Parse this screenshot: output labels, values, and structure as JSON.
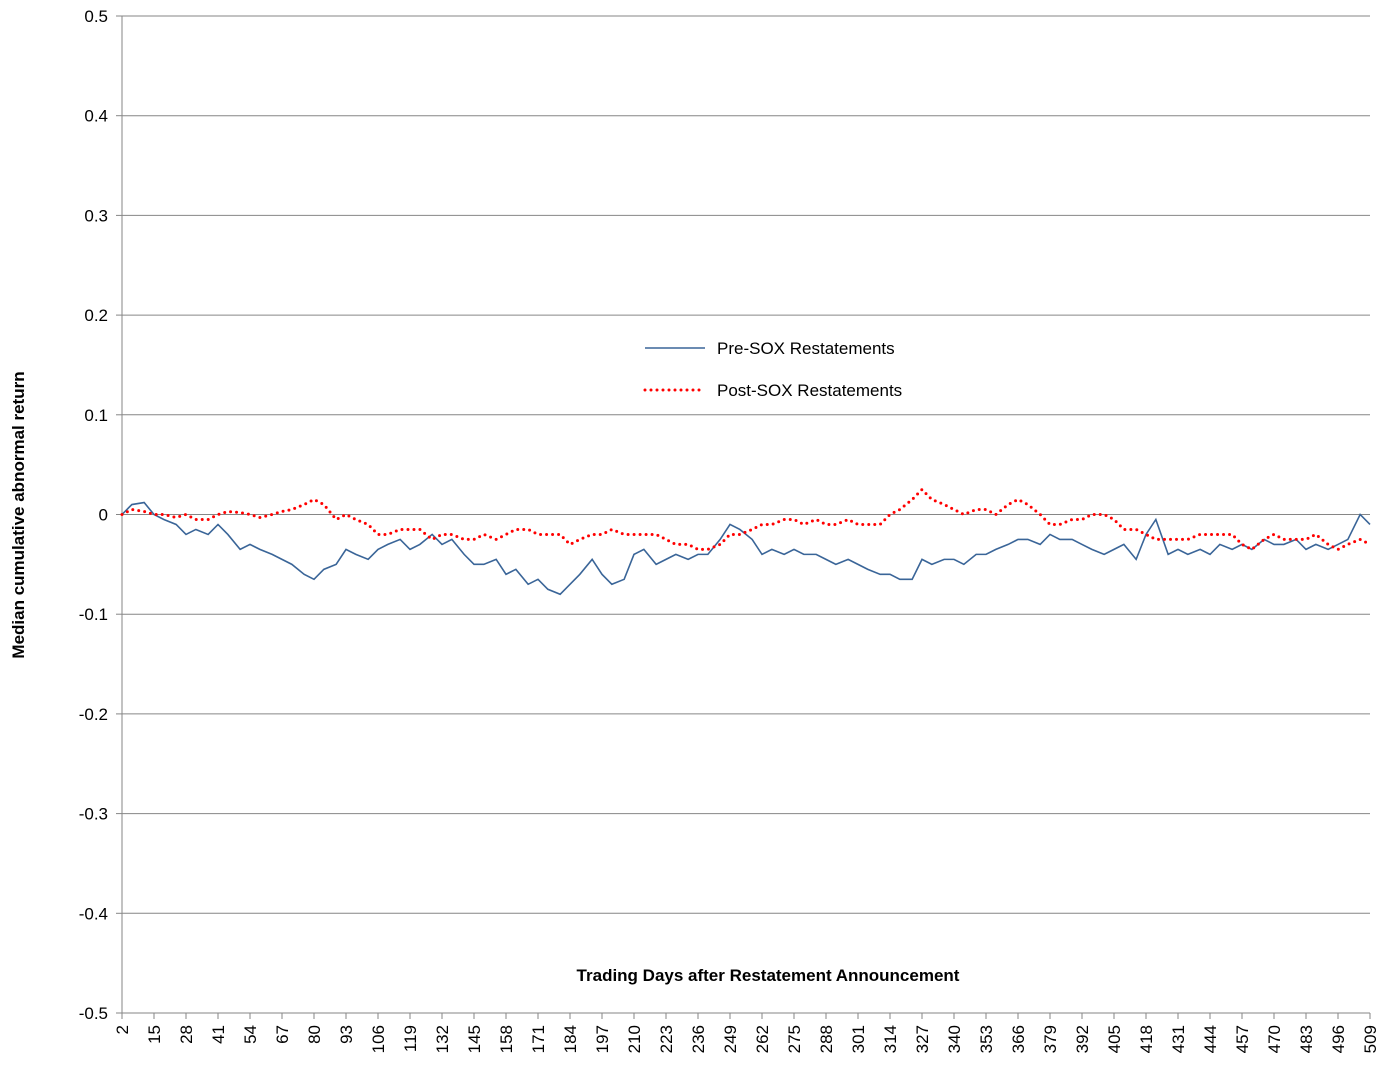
{
  "chart_data": {
    "type": "line",
    "x_label": "Trading Days after Restatement Announcement",
    "y_label": "Median cumulative abnormal return",
    "xlim": [
      2,
      509
    ],
    "ylim": [
      -0.5,
      0.5
    ],
    "yticks": [
      -0.5,
      -0.4,
      -0.3,
      -0.2,
      -0.1,
      0,
      0.1,
      0.2,
      0.3,
      0.4,
      0.5
    ],
    "xticks": [
      2,
      15,
      28,
      41,
      54,
      67,
      80,
      93,
      106,
      119,
      132,
      145,
      158,
      171,
      184,
      197,
      210,
      223,
      236,
      249,
      262,
      275,
      288,
      301,
      314,
      327,
      340,
      353,
      366,
      379,
      392,
      405,
      418,
      431,
      444,
      457,
      470,
      483,
      496,
      509
    ],
    "grid": true,
    "x": [
      2,
      6,
      11,
      15,
      19,
      24,
      28,
      32,
      37,
      41,
      45,
      50,
      54,
      58,
      63,
      67,
      71,
      76,
      80,
      84,
      89,
      93,
      97,
      102,
      106,
      110,
      115,
      119,
      123,
      128,
      132,
      136,
      141,
      145,
      149,
      154,
      158,
      162,
      167,
      171,
      175,
      180,
      184,
      188,
      193,
      197,
      201,
      206,
      210,
      214,
      219,
      223,
      227,
      232,
      236,
      240,
      245,
      249,
      253,
      258,
      262,
      266,
      271,
      275,
      279,
      284,
      288,
      292,
      297,
      301,
      305,
      310,
      314,
      318,
      323,
      327,
      331,
      336,
      340,
      344,
      349,
      353,
      357,
      362,
      366,
      370,
      375,
      379,
      383,
      388,
      392,
      396,
      401,
      405,
      409,
      414,
      418,
      422,
      427,
      431,
      435,
      440,
      444,
      448,
      453,
      457,
      461,
      466,
      470,
      474,
      479,
      483,
      487,
      492,
      496,
      500,
      505,
      509
    ],
    "series": [
      {
        "name": "Pre-SOX Restatements",
        "color": "#3a6598",
        "style": "solid",
        "values": [
          0,
          0.01,
          0.012,
          0,
          -0.005,
          -0.01,
          -0.02,
          -0.015,
          -0.02,
          -0.01,
          -0.02,
          -0.035,
          -0.03,
          -0.035,
          -0.04,
          -0.045,
          -0.05,
          -0.06,
          -0.065,
          -0.055,
          -0.05,
          -0.035,
          -0.04,
          -0.045,
          -0.035,
          -0.03,
          -0.025,
          -0.035,
          -0.03,
          -0.02,
          -0.03,
          -0.025,
          -0.04,
          -0.05,
          -0.05,
          -0.045,
          -0.06,
          -0.055,
          -0.07,
          -0.065,
          -0.075,
          -0.08,
          -0.07,
          -0.06,
          -0.045,
          -0.06,
          -0.07,
          -0.065,
          -0.04,
          -0.035,
          -0.05,
          -0.045,
          -0.04,
          -0.045,
          -0.04,
          -0.04,
          -0.025,
          -0.01,
          -0.015,
          -0.025,
          -0.04,
          -0.035,
          -0.04,
          -0.035,
          -0.04,
          -0.04,
          -0.045,
          -0.05,
          -0.045,
          -0.05,
          -0.055,
          -0.06,
          -0.06,
          -0.065,
          -0.065,
          -0.045,
          -0.05,
          -0.045,
          -0.045,
          -0.05,
          -0.04,
          -0.04,
          -0.035,
          -0.03,
          -0.025,
          -0.025,
          -0.03,
          -0.02,
          -0.025,
          -0.025,
          -0.03,
          -0.035,
          -0.04,
          -0.035,
          -0.03,
          -0.045,
          -0.02,
          -0.005,
          -0.04,
          -0.035,
          -0.04,
          -0.035,
          -0.04,
          -0.03,
          -0.035,
          -0.03,
          -0.035,
          -0.025,
          -0.03,
          -0.03,
          -0.025,
          -0.035,
          -0.03,
          -0.035,
          -0.03,
          -0.025,
          0,
          -0.01
        ]
      },
      {
        "name": "Post-SOX Restatements",
        "color": "#ff0000",
        "style": "dotted",
        "values": [
          0,
          0.005,
          0.003,
          0,
          0,
          -0.003,
          0,
          -0.005,
          -0.005,
          0,
          0.003,
          0.002,
          0,
          -0.003,
          0,
          0.003,
          0.005,
          0.01,
          0.015,
          0.01,
          -0.005,
          0,
          -0.005,
          -0.01,
          -0.02,
          -0.02,
          -0.015,
          -0.015,
          -0.015,
          -0.025,
          -0.02,
          -0.02,
          -0.025,
          -0.025,
          -0.02,
          -0.025,
          -0.02,
          -0.015,
          -0.015,
          -0.02,
          -0.02,
          -0.02,
          -0.03,
          -0.025,
          -0.02,
          -0.02,
          -0.015,
          -0.02,
          -0.02,
          -0.02,
          -0.02,
          -0.025,
          -0.03,
          -0.03,
          -0.035,
          -0.035,
          -0.03,
          -0.02,
          -0.02,
          -0.015,
          -0.01,
          -0.01,
          -0.005,
          -0.005,
          -0.01,
          -0.005,
          -0.01,
          -0.01,
          -0.005,
          -0.01,
          -0.01,
          -0.01,
          0,
          0.005,
          0.015,
          0.025,
          0.015,
          0.01,
          0.005,
          0,
          0.005,
          0.005,
          0,
          0.01,
          0.015,
          0.01,
          0,
          -0.01,
          -0.01,
          -0.005,
          -0.005,
          0,
          0,
          -0.005,
          -0.015,
          -0.015,
          -0.02,
          -0.025,
          -0.025,
          -0.025,
          -0.025,
          -0.02,
          -0.02,
          -0.02,
          -0.02,
          -0.03,
          -0.035,
          -0.025,
          -0.02,
          -0.025,
          -0.025,
          -0.025,
          -0.02,
          -0.03,
          -0.035,
          -0.03,
          -0.025,
          -0.03
        ]
      }
    ]
  }
}
